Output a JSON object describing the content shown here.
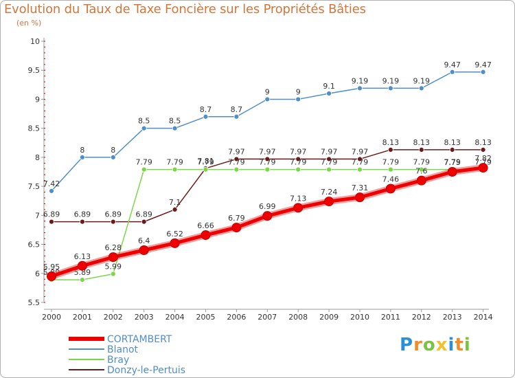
{
  "chart_data": {
    "type": "line",
    "title": "Evolution du Taux de Taxe Foncière sur les Propriétés Bâties",
    "ylabel": "(en %)",
    "xlabel": "",
    "ylim": [
      5.5,
      10
    ],
    "y_ticks": [
      "5.5",
      "6",
      "6.5",
      "7",
      "7.5",
      "8",
      "8.5",
      "9",
      "9.5",
      "10"
    ],
    "categories": [
      "2000",
      "2001",
      "2002",
      "2003",
      "2004",
      "2005",
      "2006",
      "2007",
      "2008",
      "2009",
      "2010",
      "2011",
      "2012",
      "2013",
      "2014"
    ],
    "series": [
      {
        "name": "CORTAMBERT",
        "color": "#ee0000",
        "values": [
          5.95,
          6.13,
          6.28,
          6.4,
          6.52,
          6.66,
          6.79,
          6.99,
          7.13,
          7.24,
          7.31,
          7.46,
          7.6,
          7.75,
          7.82
        ],
        "labels": [
          "5.95",
          "6.13",
          "6.28",
          "6.4",
          "6.52",
          "6.66",
          "6.79",
          "6.99",
          "7.13",
          "7.24",
          "7.31",
          "7.46",
          "7.6",
          "7.75",
          "7.82"
        ]
      },
      {
        "name": "Blanot",
        "color": "#4f8ec9",
        "values": [
          7.42,
          8,
          8,
          8.5,
          8.5,
          8.7,
          8.7,
          9,
          9,
          9.1,
          9.19,
          9.19,
          9.19,
          9.47,
          9.47
        ],
        "labels": [
          "7.42",
          "8",
          "8",
          "8.5",
          "8.5",
          "8.7",
          "8.7",
          "9",
          "9",
          "9.1",
          "9.19",
          "9.19",
          "9.19",
          "9.47",
          "9.47"
        ]
      },
      {
        "name": "Bray",
        "color": "#7bd64a",
        "values": [
          5.89,
          5.89,
          5.99,
          7.79,
          7.79,
          7.79,
          7.79,
          7.79,
          7.79,
          7.79,
          7.79,
          7.79,
          7.79,
          7.79,
          7.79
        ],
        "labels": [
          "5.89",
          "5.89",
          "5.99",
          "7.79",
          "7.79",
          "7.79",
          "7.79",
          "7.79",
          "7.79",
          "7.79",
          "7.79",
          "7.79",
          "7.79",
          "7.79",
          "7.79"
        ]
      },
      {
        "name": "Donzy-le-Pertuis",
        "color": "#6b1a1a",
        "values": [
          6.89,
          6.89,
          6.89,
          6.89,
          7.1,
          7.81,
          7.97,
          7.97,
          7.97,
          7.97,
          7.97,
          8.13,
          8.13,
          8.13,
          8.13
        ],
        "labels": [
          "6.89",
          "6.89",
          "6.89",
          "6.89",
          "7.1",
          "7.81",
          "7.97",
          "7.97",
          "7.97",
          "7.97",
          "7.97",
          "8.13",
          "8.13",
          "8.13",
          "8.13"
        ]
      }
    ],
    "legend_position": "bottom-left",
    "grid": false
  },
  "branding": {
    "logo_letters": [
      "P",
      "r",
      "o",
      "x",
      "i",
      "t",
      "i"
    ],
    "logo_colors": [
      "#2a8fd6",
      "#f28c28",
      "#7cc242",
      "#f2c12e",
      "#2a8fd6",
      "#f28c28",
      "#7cc242"
    ]
  }
}
